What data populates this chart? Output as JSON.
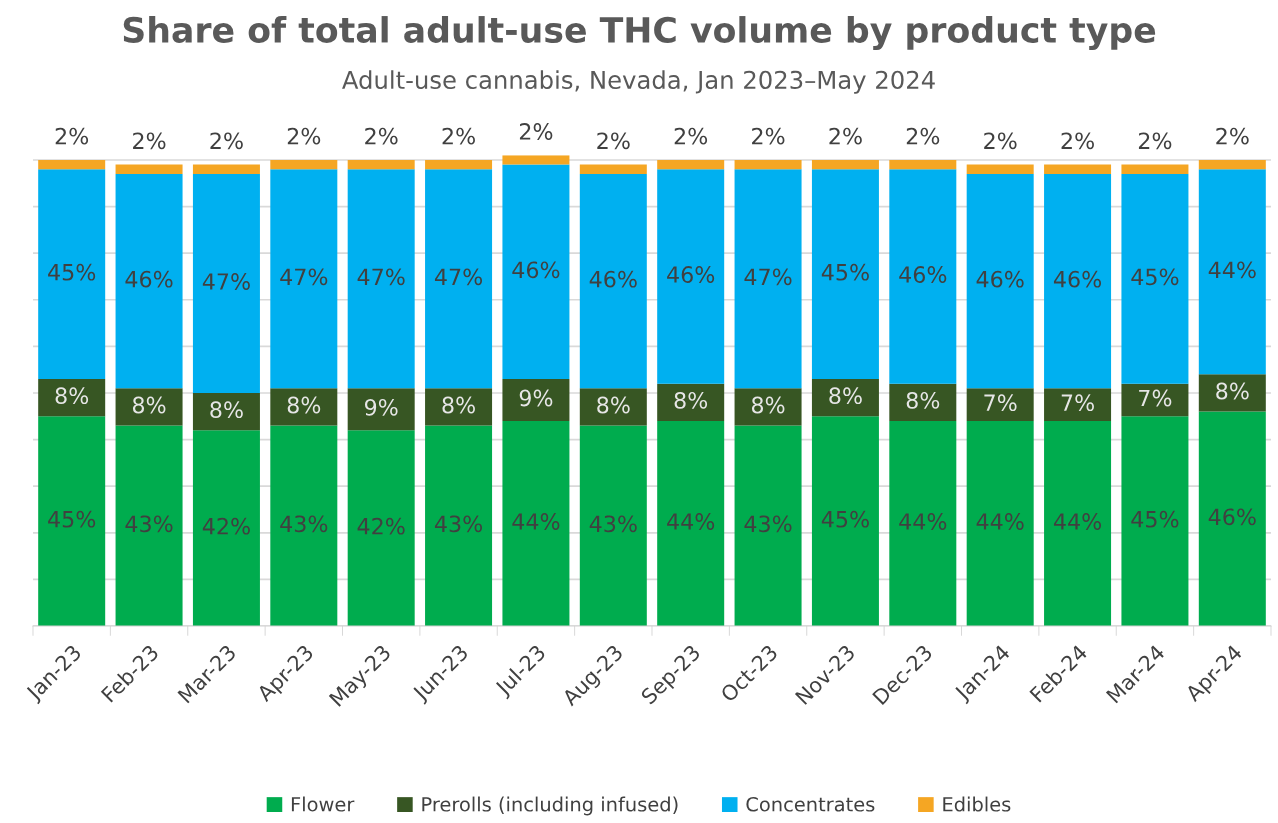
{
  "chart_data": {
    "type": "bar",
    "title": "Share of total adult-use THC volume by product type",
    "subtitle": "Adult-use cannabis, Nevada, Jan 2023–May 2024",
    "categories": [
      "Jan-23",
      "Feb-23",
      "Mar-23",
      "Apr-23",
      "May-23",
      "Jun-23",
      "Jul-23",
      "Aug-23",
      "Sep-23",
      "Oct-23",
      "Nov-23",
      "Dec-23",
      "Jan-24",
      "Feb-24",
      "Mar-24",
      "Apr-24"
    ],
    "series": [
      {
        "name": "Flower",
        "color": "#00ac4e",
        "values": [
          45,
          43,
          42,
          43,
          42,
          43,
          44,
          43,
          44,
          43,
          45,
          44,
          44,
          44,
          45,
          46
        ],
        "value_labels": [
          "45%",
          "43%",
          "42%",
          "43%",
          "42%",
          "43%",
          "44%",
          "43%",
          "44%",
          "43%",
          "45%",
          "44%",
          "44%",
          "44%",
          "45%",
          "46%"
        ]
      },
      {
        "name": "Prerolls (including infused)",
        "color": "#375623",
        "values": [
          8,
          8,
          8,
          8,
          9,
          8,
          9,
          8,
          8,
          8,
          8,
          8,
          7,
          7,
          7,
          8
        ],
        "value_labels": [
          "8%",
          "8%",
          "8%",
          "8%",
          "9%",
          "8%",
          "9%",
          "8%",
          "8%",
          "8%",
          "8%",
          "8%",
          "7%",
          "7%",
          "7%",
          "8%"
        ]
      },
      {
        "name": "Concentrates",
        "color": "#00b0f0",
        "values": [
          45,
          46,
          47,
          47,
          47,
          47,
          46,
          46,
          46,
          47,
          45,
          46,
          46,
          46,
          45,
          44
        ],
        "value_labels": [
          "45%",
          "46%",
          "47%",
          "47%",
          "47%",
          "47%",
          "46%",
          "46%",
          "46%",
          "47%",
          "45%",
          "46%",
          "46%",
          "46%",
          "45%",
          "44%"
        ]
      },
      {
        "name": "Edibles",
        "color": "#f5a623",
        "values": [
          2,
          2,
          2,
          2,
          2,
          2,
          2,
          2,
          2,
          2,
          2,
          2,
          2,
          2,
          2,
          2
        ],
        "value_labels": [
          "2%",
          "2%",
          "2%",
          "2%",
          "2%",
          "2%",
          "2%",
          "2%",
          "2%",
          "2%",
          "2%",
          "2%",
          "2%",
          "2%",
          "2%",
          "2%"
        ]
      }
    ],
    "stacked": true,
    "ylim": [
      0,
      101
    ],
    "yticks": [
      {
        "value": 0,
        "label": null
      },
      {
        "value": 10,
        "label": null
      },
      {
        "value": 20,
        "label": null
      },
      {
        "value": 30,
        "label": null
      },
      {
        "value": 40,
        "label": null
      },
      {
        "value": 50,
        "label": null
      },
      {
        "value": 60,
        "label": null
      },
      {
        "value": 70,
        "label": null
      },
      {
        "value": 80,
        "label": null
      },
      {
        "value": 90,
        "label": null
      },
      {
        "value": 100,
        "label": null
      }
    ],
    "tick_labels": "x",
    "grid": "y",
    "legend": "bottom"
  }
}
